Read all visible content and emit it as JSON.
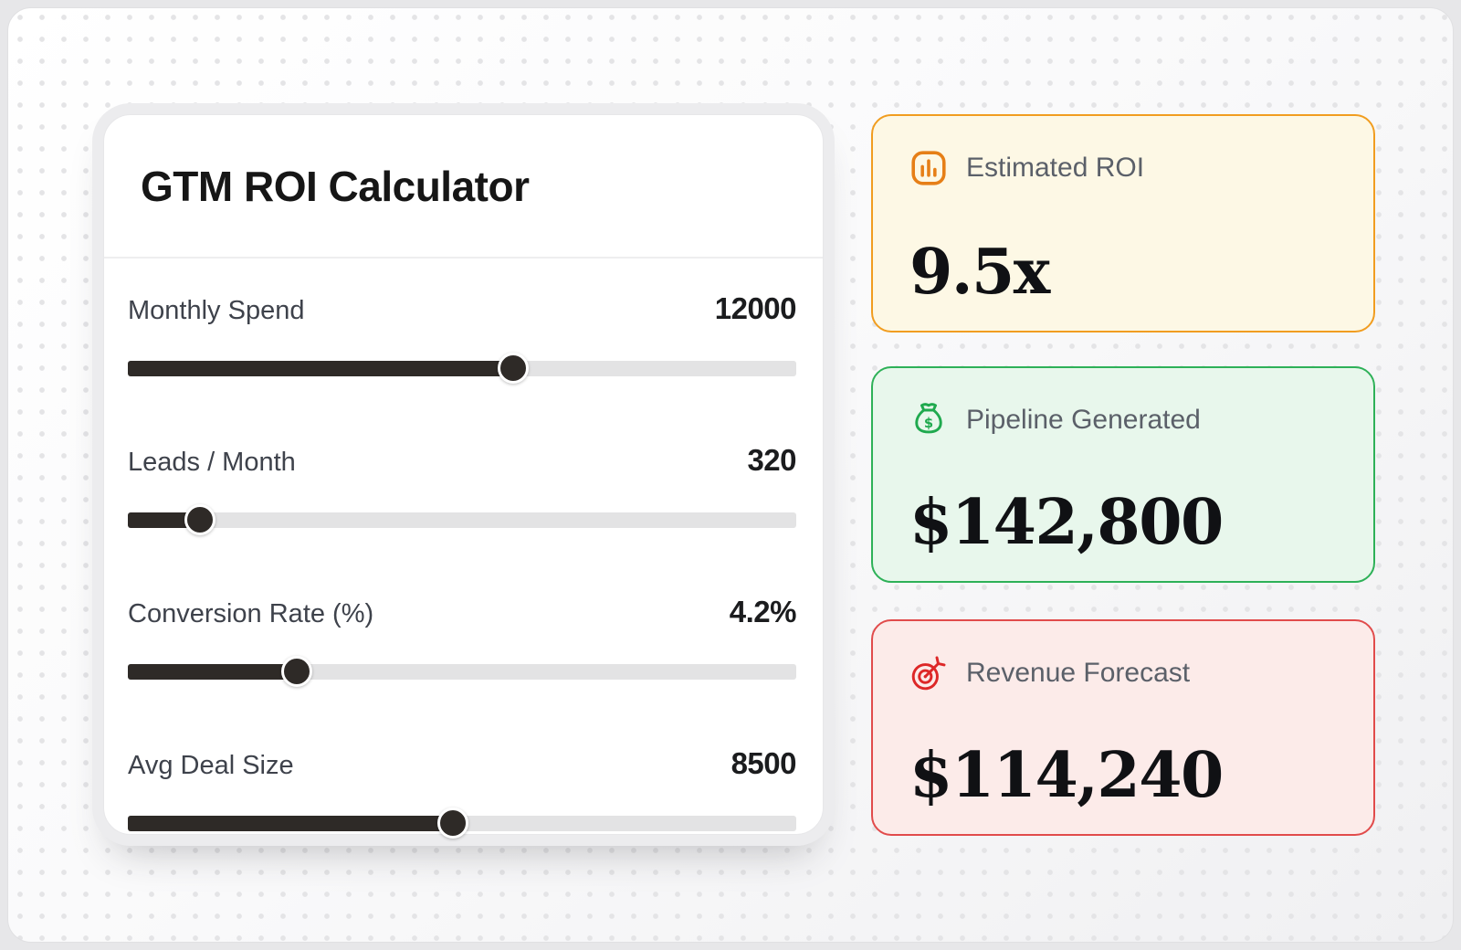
{
  "calculator": {
    "title": "GTM ROI Calculator",
    "sliders": [
      {
        "label": "Monthly Spend",
        "value": "12000",
        "fill_percent": 57.6
      },
      {
        "label": "Leads / Month",
        "value": "320",
        "fill_percent": 10.8
      },
      {
        "label": "Conversion Rate (%)",
        "value": "4.2%",
        "fill_percent": 25.3
      },
      {
        "label": "Avg Deal Size",
        "value": "8500",
        "fill_percent": 48.6
      }
    ]
  },
  "results": [
    {
      "label": "Estimated ROI",
      "value": "9.5x",
      "icon": "bar-chart-icon",
      "bg": "#fdf8e5",
      "border": "#f19d20",
      "icon_color": "#e67f17"
    },
    {
      "label": "Pipeline Generated",
      "value": "$142,800",
      "icon": "money-bag-icon",
      "bg": "#e8f7ec",
      "border": "#2eb158",
      "icon_color": "#1fa94e"
    },
    {
      "label": "Revenue Forecast",
      "value": "$114,240",
      "icon": "target-arrow-icon",
      "bg": "#fcebe9",
      "border": "#e14b4b",
      "icon_color": "#dd2727"
    }
  ]
}
